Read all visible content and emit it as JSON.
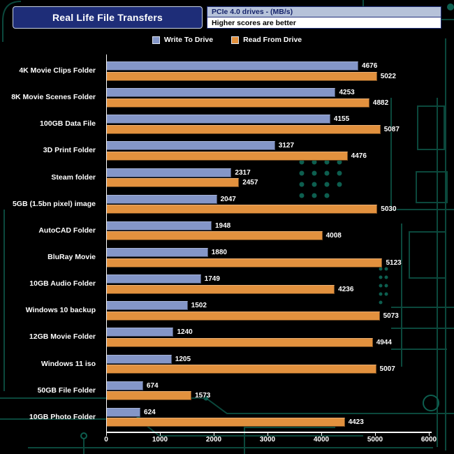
{
  "header": {
    "title": "Real Life File Transfers",
    "subtitle_line1": "PCIe 4.0 drives - (MB/s)",
    "subtitle_line2": "Higher scores are better"
  },
  "legend": [
    {
      "label": "Write To  Drive",
      "color": "#8496c8"
    },
    {
      "label": "Read From  Drive",
      "color": "#e2913e"
    }
  ],
  "chart_data": {
    "type": "bar",
    "orientation": "horizontal",
    "title": "Real Life File Transfers",
    "subtitle": "PCIe 4.0 drives - (MB/s) — Higher scores are better",
    "categories": [
      "4K Movie Clips Folder",
      "8K Movie Scenes Folder",
      "100GB Data File",
      "3D Print Folder",
      "Steam folder",
      "5GB (1.5bn pixel) image",
      "AutoCAD Folder",
      "BluRay Movie",
      "10GB Audio Folder",
      "Windows 10 backup",
      "12GB Movie Folder",
      "Windows 11 iso",
      "50GB File Folder",
      "10GB Photo Folder"
    ],
    "series": [
      {
        "name": "Write To  Drive",
        "color": "#8496c8",
        "values": [
          4676,
          4253,
          4155,
          3127,
          2317,
          2047,
          1948,
          1880,
          1749,
          1502,
          1240,
          1205,
          674,
          624
        ]
      },
      {
        "name": "Read From  Drive",
        "color": "#e2913e",
        "values": [
          5022,
          4882,
          5087,
          4476,
          2457,
          5030,
          4008,
          5123,
          4236,
          5073,
          4944,
          5007,
          1573,
          4423
        ]
      }
    ],
    "xlabel": "",
    "ylabel": "",
    "xlim": [
      0,
      6000
    ],
    "xticks": [
      0,
      1000,
      2000,
      3000,
      4000,
      5000,
      6000
    ],
    "grid": false,
    "legend_position": "top",
    "value_labels": true
  },
  "colors": {
    "background": "#000000",
    "title_box_bg": "#1e2d78",
    "title_box_border": "#c8d2e4",
    "title_text": "#ffffff",
    "subtitle1_bg": "#b6c2d9",
    "subtitle1_text": "#16246b",
    "subtitle2_bg": "#ffffff",
    "subtitle2_text": "#000000",
    "axis": "#ffffff",
    "label_text": "#ffffff",
    "circuit_trace": "#0c4c40",
    "circuit_pad": "#0d5e4f"
  }
}
